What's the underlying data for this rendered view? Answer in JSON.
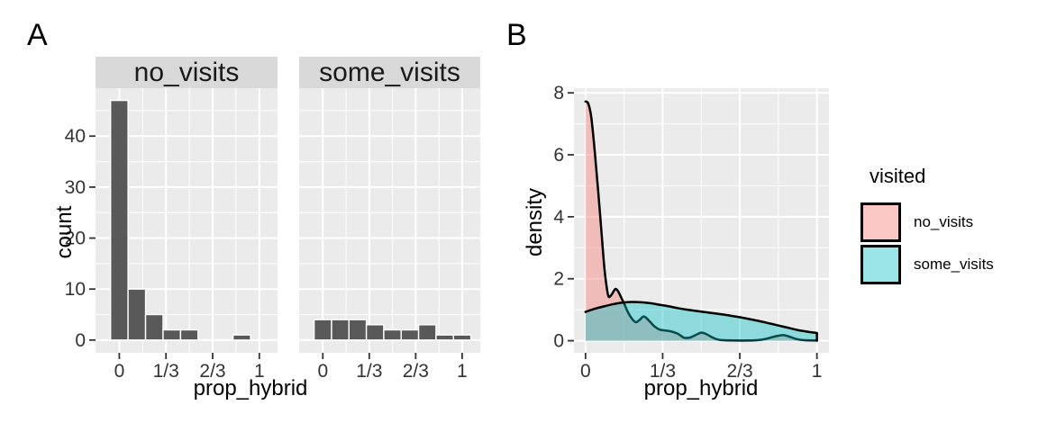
{
  "figure": {
    "panel_a_label": "A",
    "panel_b_label": "B"
  },
  "colors": {
    "panel_bg": "#EBEBEB",
    "strip_bg": "#D9D9D9",
    "grid": "#FFFFFF",
    "bar_fill": "#595959",
    "bar_outline": "#FFFFFF",
    "curve_outline": "#000000",
    "no_visits_fill": "#F8766D",
    "some_visits_fill": "#00BFC4",
    "fill_alpha": 0.4,
    "tick_text": "#333333",
    "tick_mark": "#333333"
  },
  "chart_data": [
    {
      "id": "panel_a",
      "type": "bar",
      "xlabel": "prop_hybrid",
      "ylabel": "count",
      "facets": [
        {
          "label": "no_visits",
          "counts": [
            47,
            10,
            5,
            2,
            2,
            0,
            0,
            1,
            0
          ]
        },
        {
          "label": "some_visits",
          "counts": [
            4,
            4,
            4,
            3,
            2,
            2,
            3,
            1,
            1
          ]
        }
      ],
      "bin_centers": [
        0,
        0.125,
        0.25,
        0.375,
        0.5,
        0.625,
        0.75,
        0.875,
        1
      ],
      "binwidth": 0.125,
      "x_axis": {
        "ticks": [
          {
            "v": 0,
            "t": "0"
          },
          {
            "v": 0.33333,
            "t": "1/3"
          },
          {
            "v": 0.66667,
            "t": "2/3"
          },
          {
            "v": 1,
            "t": "1"
          }
        ],
        "minor": [
          0.16667,
          0.5,
          0.83333
        ],
        "range": [
          -0.17,
          1.13
        ]
      },
      "y_axis": {
        "ticks": [
          {
            "v": 0,
            "t": "0"
          },
          {
            "v": 10,
            "t": "10"
          },
          {
            "v": 20,
            "t": "20"
          },
          {
            "v": 30,
            "t": "30"
          },
          {
            "v": 40,
            "t": "40"
          }
        ],
        "minor": [
          5,
          15,
          25,
          35,
          45
        ],
        "range": [
          -2.5,
          49.4
        ]
      }
    },
    {
      "id": "panel_b",
      "type": "area",
      "xlabel": "prop_hybrid",
      "ylabel": "density",
      "series": [
        {
          "name": "no_visits",
          "points": [
            [
              0,
              7.72
            ],
            [
              0.012,
              7.65
            ],
            [
              0.025,
              7.2
            ],
            [
              0.04,
              6.1
            ],
            [
              0.055,
              4.8
            ],
            [
              0.07,
              3.4
            ],
            [
              0.082,
              2.3
            ],
            [
              0.092,
              1.7
            ],
            [
              0.1,
              1.42
            ],
            [
              0.112,
              1.48
            ],
            [
              0.125,
              1.64
            ],
            [
              0.132,
              1.67
            ],
            [
              0.142,
              1.58
            ],
            [
              0.155,
              1.38
            ],
            [
              0.168,
              1.18
            ],
            [
              0.18,
              0.97
            ],
            [
              0.195,
              0.77
            ],
            [
              0.21,
              0.63
            ],
            [
              0.22,
              0.6
            ],
            [
              0.235,
              0.68
            ],
            [
              0.25,
              0.78
            ],
            [
              0.262,
              0.74
            ],
            [
              0.28,
              0.6
            ],
            [
              0.3,
              0.45
            ],
            [
              0.32,
              0.36
            ],
            [
              0.345,
              0.33
            ],
            [
              0.37,
              0.3
            ],
            [
              0.4,
              0.22
            ],
            [
              0.425,
              0.1
            ],
            [
              0.45,
              0.1
            ],
            [
              0.475,
              0.18
            ],
            [
              0.5,
              0.26
            ],
            [
              0.52,
              0.22
            ],
            [
              0.545,
              0.12
            ],
            [
              0.57,
              0.04
            ],
            [
              0.6,
              0.015
            ],
            [
              0.65,
              0.008
            ],
            [
              0.7,
              0.008
            ],
            [
              0.745,
              0.02
            ],
            [
              0.78,
              0.06
            ],
            [
              0.82,
              0.14
            ],
            [
              0.855,
              0.18
            ],
            [
              0.885,
              0.12
            ],
            [
              0.915,
              0.045
            ],
            [
              0.95,
              0.015
            ],
            [
              1,
              0.008
            ]
          ]
        },
        {
          "name": "some_visits",
          "points": [
            [
              0,
              0.93
            ],
            [
              0.04,
              1.03
            ],
            [
              0.08,
              1.11
            ],
            [
              0.12,
              1.18
            ],
            [
              0.16,
              1.23
            ],
            [
              0.2,
              1.25
            ],
            [
              0.24,
              1.24
            ],
            [
              0.28,
              1.21
            ],
            [
              0.32,
              1.16
            ],
            [
              0.36,
              1.11
            ],
            [
              0.4,
              1.05
            ],
            [
              0.44,
              1.0
            ],
            [
              0.48,
              0.96
            ],
            [
              0.52,
              0.92
            ],
            [
              0.56,
              0.88
            ],
            [
              0.6,
              0.84
            ],
            [
              0.64,
              0.79
            ],
            [
              0.68,
              0.74
            ],
            [
              0.72,
              0.68
            ],
            [
              0.76,
              0.62
            ],
            [
              0.8,
              0.55
            ],
            [
              0.84,
              0.48
            ],
            [
              0.88,
              0.41
            ],
            [
              0.92,
              0.34
            ],
            [
              0.96,
              0.29
            ],
            [
              1,
              0.25
            ]
          ]
        }
      ],
      "x_axis": {
        "ticks": [
          {
            "v": 0,
            "t": "0"
          },
          {
            "v": 0.33333,
            "t": "1/3"
          },
          {
            "v": 0.66667,
            "t": "2/3"
          },
          {
            "v": 1,
            "t": "1"
          }
        ],
        "minor": [
          0.16667,
          0.5,
          0.83333
        ],
        "range": [
          -0.05,
          1.052
        ]
      },
      "y_axis": {
        "ticks": [
          {
            "v": 0,
            "t": "0"
          },
          {
            "v": 2,
            "t": "2"
          },
          {
            "v": 4,
            "t": "4"
          },
          {
            "v": 6,
            "t": "6"
          },
          {
            "v": 8,
            "t": "8"
          }
        ],
        "minor": [
          1,
          3,
          5,
          7
        ],
        "range": [
          -0.39,
          8.15
        ]
      }
    }
  ],
  "legend": {
    "title": "visited",
    "items": [
      {
        "label": "no_visits",
        "color": "#F8766D"
      },
      {
        "label": "some_visits",
        "color": "#00BFC4"
      }
    ]
  }
}
